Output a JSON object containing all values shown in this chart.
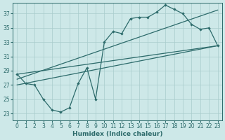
{
  "xlabel": "Humidex (Indice chaleur)",
  "bg_color": "#cde8e8",
  "line_color": "#2d6b6b",
  "grid_color": "#a8cccc",
  "xlim": [
    -0.5,
    23.5
  ],
  "ylim": [
    22.0,
    38.5
  ],
  "yticks": [
    23,
    25,
    27,
    29,
    31,
    33,
    35,
    37
  ],
  "xticks": [
    0,
    1,
    2,
    3,
    4,
    5,
    6,
    7,
    8,
    9,
    10,
    11,
    12,
    13,
    14,
    15,
    16,
    17,
    18,
    19,
    20,
    21,
    22,
    23
  ],
  "series_main": {
    "x": [
      0,
      1,
      2,
      3,
      4,
      5,
      6,
      7,
      8,
      9,
      10,
      11,
      12,
      13,
      14,
      15,
      16,
      17,
      18,
      19,
      20,
      21,
      22,
      23
    ],
    "y": [
      28.5,
      27.2,
      27.0,
      25.0,
      23.5,
      23.2,
      23.8,
      27.2,
      29.4,
      25.0,
      33.0,
      34.5,
      34.2,
      36.3,
      36.5,
      36.5,
      37.2,
      38.2,
      37.6,
      37.0,
      35.5,
      34.8,
      35.0,
      32.5
    ]
  },
  "series_upper": {
    "x": [
      0,
      23
    ],
    "y": [
      28.5,
      32.5
    ]
  },
  "series_lower": {
    "x": [
      0,
      23
    ],
    "y": [
      27.0,
      32.5
    ]
  },
  "series_mid": {
    "x": [
      0,
      23
    ],
    "y": [
      27.8,
      37.5
    ]
  }
}
